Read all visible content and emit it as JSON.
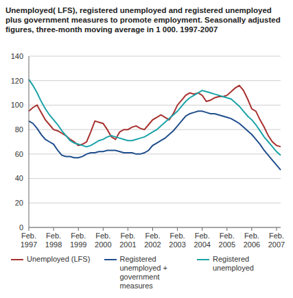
{
  "chart_data": {
    "type": "line",
    "title": "Unemployed( LFS), registered unemployed and registered unemployed plus government measures to promote employment. Seasonally adjusted figures, three-month moving average in 1 000. 1997-2007",
    "categories": [
      "Feb. 1997",
      null,
      null,
      null,
      null,
      null,
      "Feb. 1998",
      null,
      null,
      null,
      null,
      null,
      "Feb. 1999",
      null,
      null,
      null,
      null,
      null,
      "Feb. 2000",
      null,
      null,
      null,
      null,
      null,
      "Feb. 2001",
      null,
      null,
      null,
      null,
      null,
      "Feb. 2002",
      null,
      null,
      null,
      null,
      null,
      "Feb. 2003",
      null,
      null,
      null,
      null,
      null,
      "Feb. 2004",
      null,
      null,
      null,
      null,
      null,
      "Feb. 2005",
      null,
      null,
      null,
      null,
      null,
      "Feb. 2006",
      null,
      null,
      null,
      null,
      null,
      "Feb. 2007",
      null
    ],
    "series": [
      {
        "name": "Unemployed (LFS)",
        "color": "#a8312e",
        "values": [
          95,
          98,
          100,
          94,
          88,
          84,
          80,
          79,
          77,
          75,
          72,
          70,
          67,
          68,
          70,
          78,
          87,
          86,
          85,
          80,
          74,
          72,
          78,
          80,
          80,
          82,
          83,
          81,
          80,
          84,
          88,
          90,
          92,
          90,
          88,
          93,
          100,
          104,
          108,
          110,
          109,
          110,
          108,
          103,
          104,
          106,
          107,
          107,
          108,
          111,
          114,
          116,
          112,
          105,
          97,
          95,
          88,
          82,
          75,
          70,
          67,
          66
        ]
      },
      {
        "name": "Registered unemployed + government measures",
        "color": "#1f4e8c",
        "values": [
          87,
          85,
          81,
          76,
          72,
          70,
          68,
          63,
          59,
          58,
          58,
          57,
          57,
          58,
          60,
          61,
          61,
          62,
          62,
          63,
          63,
          63,
          62,
          61,
          61,
          61,
          60,
          60,
          61,
          63,
          67,
          69,
          71,
          73,
          76,
          79,
          83,
          87,
          91,
          93,
          94,
          95,
          95,
          94,
          93,
          93,
          92,
          91,
          90,
          89,
          87,
          85,
          82,
          79,
          76,
          72,
          68,
          63,
          59,
          55,
          51,
          47
        ]
      },
      {
        "name": "Registered unemployed",
        "color": "#1aa3a8",
        "values": [
          121,
          116,
          110,
          103,
          97,
          92,
          88,
          84,
          79,
          75,
          71,
          69,
          68,
          67,
          66,
          67,
          69,
          71,
          72,
          74,
          75,
          74,
          73,
          72,
          71,
          71,
          72,
          73,
          74,
          76,
          78,
          80,
          83,
          86,
          89,
          92,
          95,
          99,
          103,
          106,
          108,
          110,
          112,
          111,
          110,
          109,
          108,
          107,
          106,
          105,
          102,
          99,
          95,
          91,
          88,
          84,
          79,
          74,
          70,
          66,
          62,
          59
        ]
      }
    ],
    "ylim": [
      0,
      140
    ],
    "yticks": [
      0,
      20,
      40,
      60,
      80,
      100,
      120,
      140
    ],
    "grid": true
  }
}
